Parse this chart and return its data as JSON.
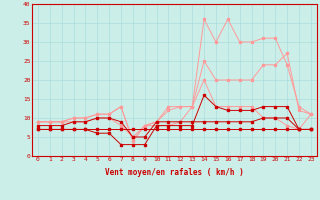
{
  "xlabel": "Vent moyen/en rafales ( km/h )",
  "x": [
    0,
    1,
    2,
    3,
    4,
    5,
    6,
    7,
    8,
    9,
    10,
    11,
    12,
    13,
    14,
    15,
    16,
    17,
    18,
    19,
    20,
    21,
    22,
    23
  ],
  "line_dark1": [
    7,
    7,
    7,
    7,
    7,
    7,
    7,
    7,
    7,
    7,
    7,
    7,
    7,
    7,
    7,
    7,
    7,
    7,
    7,
    7,
    7,
    7,
    7,
    7
  ],
  "line_dark2": [
    7,
    7,
    7,
    7,
    7,
    6,
    6,
    3,
    3,
    3,
    8,
    8,
    8,
    8,
    16,
    13,
    12,
    12,
    12,
    13,
    13,
    13,
    7,
    7
  ],
  "line_dark3": [
    8,
    8,
    8,
    9,
    9,
    10,
    10,
    9,
    5,
    5,
    9,
    9,
    9,
    9,
    9,
    9,
    9,
    9,
    9,
    10,
    10,
    10,
    7,
    7
  ],
  "line_pink1": [
    9,
    9,
    9,
    9,
    9,
    10,
    10,
    8,
    5,
    8,
    8,
    8,
    9,
    13,
    20,
    13,
    13,
    13,
    13,
    10,
    10,
    8,
    7,
    11
  ],
  "line_pink2": [
    9,
    9,
    9,
    10,
    10,
    11,
    11,
    13,
    4,
    8,
    9,
    13,
    13,
    13,
    25,
    20,
    20,
    20,
    20,
    24,
    24,
    27,
    12,
    11
  ],
  "line_pink3": [
    9,
    9,
    9,
    10,
    10,
    11,
    11,
    13,
    4,
    8,
    9,
    12,
    13,
    13,
    36,
    30,
    36,
    30,
    30,
    31,
    31,
    24,
    13,
    11
  ],
  "ylim": [
    0,
    40
  ],
  "yticks": [
    0,
    5,
    10,
    15,
    20,
    25,
    30,
    35,
    40
  ],
  "bg_color": "#cceee8",
  "grid_color": "#aadddd",
  "dark_color": "#cc0000",
  "pink_color": "#ff9999"
}
